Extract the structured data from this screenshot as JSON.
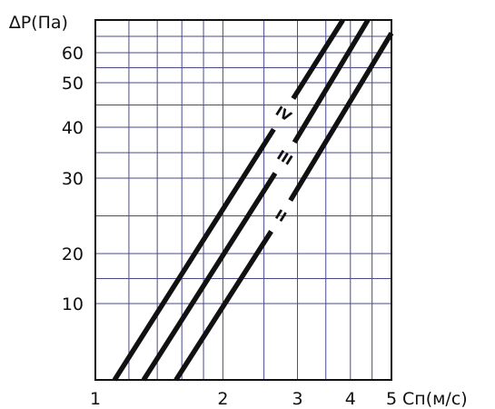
{
  "chart_data": {
    "type": "line",
    "xlabel": "Cп(м/с)",
    "ylabel": "∆P(Па)",
    "x_scale": "log",
    "y_scale": "custom-nonlinear",
    "xlim": [
      1,
      5
    ],
    "ylim": [
      0,
      70
    ],
    "grid": true,
    "x_ticks": [
      "1",
      "2",
      "3",
      "4",
      "5"
    ],
    "y_ticks": [
      "10",
      "20",
      "30",
      "40",
      "50",
      "60"
    ],
    "series": [
      {
        "name": "IV",
        "x": [
          1.11,
          3.84
        ],
        "y": [
          0,
          70
        ]
      },
      {
        "name": "III",
        "x": [
          1.3,
          4.4
        ],
        "y": [
          0,
          70
        ]
      },
      {
        "name": "II",
        "x": [
          1.55,
          5.0
        ],
        "y": [
          0,
          66
        ]
      }
    ],
    "label_positions": [
      {
        "name": "IV",
        "x": 2.78,
        "y": 43
      },
      {
        "name": "III",
        "x": 2.8,
        "y": 34
      },
      {
        "name": "II",
        "x": 2.74,
        "y": 25
      }
    ]
  }
}
